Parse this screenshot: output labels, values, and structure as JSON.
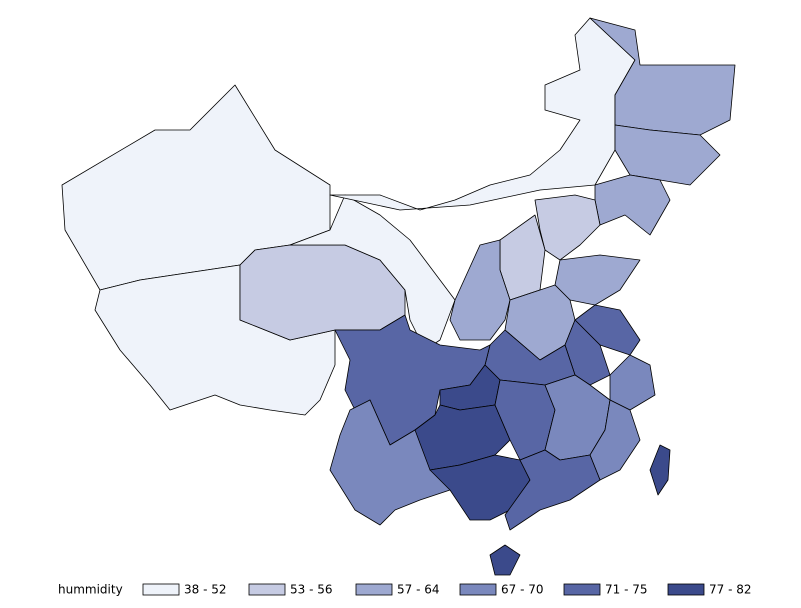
{
  "map_data": {
    "legend_title": "hummidity",
    "classes": [
      {
        "label": "38 - 52",
        "color": "#eff3fa"
      },
      {
        "label": "53 - 56",
        "color": "#c6cbe3"
      },
      {
        "label": "57 - 64",
        "color": "#9ea9d1"
      },
      {
        "label": "67 - 70",
        "color": "#7a88bd"
      },
      {
        "label": "71 - 75",
        "color": "#5866a5"
      },
      {
        "label": "77 - 82",
        "color": "#3b4a8b"
      }
    ],
    "region_classes": [
      0,
      0,
      1,
      0,
      0,
      2,
      2,
      2,
      1,
      1,
      2,
      2,
      2,
      4,
      4,
      4,
      4,
      5,
      3,
      5,
      4,
      3,
      3,
      3,
      5,
      4,
      5,
      5
    ]
  }
}
